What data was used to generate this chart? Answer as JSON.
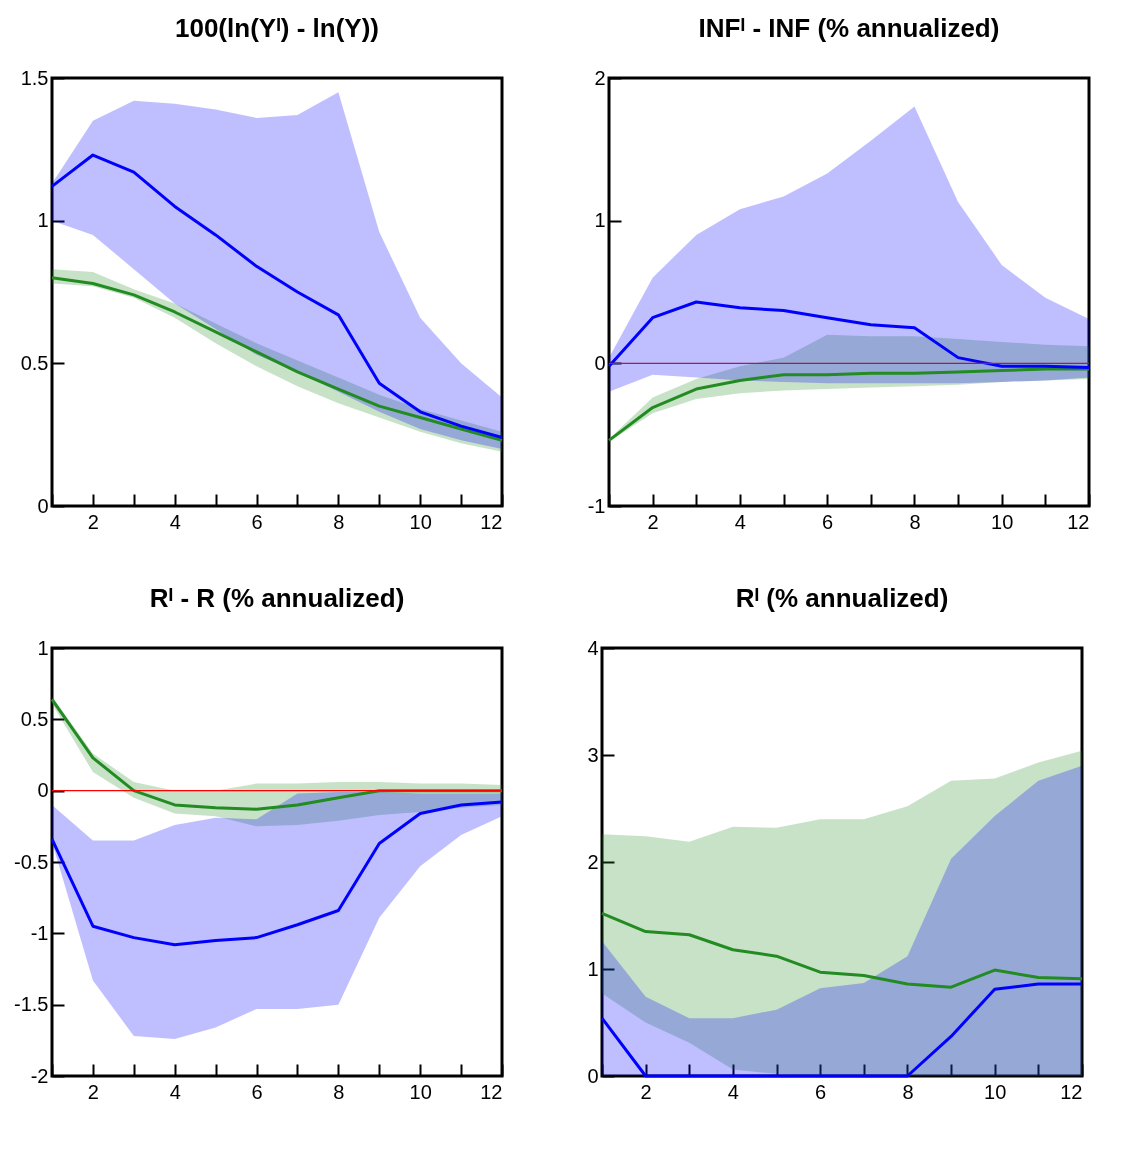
{
  "chart_data": [
    {
      "type": "line",
      "title": "100(ln(Yᴵ) - ln(Y))",
      "x": [
        1,
        2,
        3,
        4,
        5,
        6,
        7,
        8,
        9,
        10,
        11,
        12
      ],
      "xlim": [
        1,
        12
      ],
      "xticks": [
        {
          "value": 1,
          "label": null
        },
        2,
        {
          "value": 3,
          "label": null
        },
        4,
        {
          "value": 5,
          "label": null
        },
        6,
        {
          "value": 7,
          "label": null
        },
        8,
        {
          "value": 9,
          "label": null
        },
        10,
        {
          "value": 11,
          "label": null
        },
        12
      ],
      "ylim": [
        0,
        1.5
      ],
      "yticks": [
        0,
        0.5,
        1,
        1.5
      ],
      "grid": false,
      "series": [
        {
          "color": "#228b22",
          "values": [
            0.8,
            0.78,
            0.74,
            0.68,
            0.61,
            0.54,
            0.47,
            0.41,
            0.35,
            0.31,
            0.27,
            0.23
          ],
          "lower": [
            0.78,
            0.77,
            0.73,
            0.66,
            0.57,
            0.49,
            0.42,
            0.36,
            0.31,
            0.26,
            0.22,
            0.19
          ],
          "upper": [
            0.83,
            0.82,
            0.76,
            0.71,
            0.64,
            0.57,
            0.51,
            0.45,
            0.39,
            0.34,
            0.3,
            0.26
          ]
        },
        {
          "color": "#0000ff",
          "values": [
            1.12,
            1.23,
            1.17,
            1.05,
            0.95,
            0.84,
            0.75,
            0.67,
            0.43,
            0.33,
            0.28,
            0.24
          ],
          "lower": [
            1.0,
            0.95,
            0.83,
            0.71,
            0.62,
            0.53,
            0.47,
            0.4,
            0.33,
            0.27,
            0.23,
            0.2
          ],
          "upper": [
            1.13,
            1.35,
            1.42,
            1.41,
            1.39,
            1.36,
            1.37,
            1.45,
            0.96,
            0.66,
            0.5,
            0.38
          ]
        }
      ]
    },
    {
      "type": "line",
      "title": "INFᴵ - INF (% annualized)",
      "x": [
        1,
        2,
        3,
        4,
        5,
        6,
        7,
        8,
        9,
        10,
        11,
        12
      ],
      "xlim": [
        1,
        12
      ],
      "xticks": [
        {
          "value": 1,
          "label": null
        },
        2,
        {
          "value": 3,
          "label": null
        },
        4,
        {
          "value": 5,
          "label": null
        },
        6,
        {
          "value": 7,
          "label": null
        },
        8,
        {
          "value": 9,
          "label": null
        },
        10,
        {
          "value": 11,
          "label": null
        },
        12
      ],
      "ylim": [
        -1,
        2
      ],
      "yticks": [
        -1,
        0,
        1,
        2
      ],
      "grid": false,
      "ref_lines": [
        {
          "axis": "y",
          "value": 0,
          "color": "#a0204a"
        }
      ],
      "series": [
        {
          "color": "#228b22",
          "values": [
            -0.54,
            -0.31,
            -0.18,
            -0.12,
            -0.08,
            -0.08,
            -0.07,
            -0.07,
            -0.06,
            -0.05,
            -0.04,
            -0.04
          ],
          "lower": [
            -0.55,
            -0.35,
            -0.25,
            -0.21,
            -0.19,
            -0.18,
            -0.17,
            -0.16,
            -0.15,
            -0.13,
            -0.12,
            -0.11
          ],
          "upper": [
            -0.53,
            -0.24,
            -0.11,
            -0.02,
            0.04,
            0.2,
            0.19,
            0.19,
            0.17,
            0.15,
            0.13,
            0.12
          ]
        },
        {
          "color": "#0000ff",
          "values": [
            -0.02,
            0.32,
            0.43,
            0.39,
            0.37,
            0.32,
            0.27,
            0.25,
            0.04,
            -0.02,
            -0.02,
            -0.03
          ],
          "lower": [
            -0.2,
            -0.08,
            -0.1,
            -0.12,
            -0.13,
            -0.14,
            -0.14,
            -0.14,
            -0.14,
            -0.13,
            -0.12,
            -0.1
          ],
          "upper": [
            0.04,
            0.6,
            0.9,
            1.08,
            1.17,
            1.33,
            1.56,
            1.8,
            1.13,
            0.69,
            0.46,
            0.31
          ]
        }
      ]
    },
    {
      "type": "line",
      "title": "Rᴵ - R  (% annualized)",
      "x": [
        1,
        2,
        3,
        4,
        5,
        6,
        7,
        8,
        9,
        10,
        11,
        12
      ],
      "xlim": [
        1,
        12
      ],
      "xticks": [
        {
          "value": 1,
          "label": null
        },
        2,
        {
          "value": 3,
          "label": null
        },
        4,
        {
          "value": 5,
          "label": null
        },
        6,
        {
          "value": 7,
          "label": null
        },
        8,
        {
          "value": 9,
          "label": null
        },
        10,
        {
          "value": 11,
          "label": null
        },
        12
      ],
      "ylim": [
        -2,
        1
      ],
      "yticks": [
        -2,
        -1.5,
        -1,
        -0.5,
        0,
        0.5,
        1
      ],
      "grid": false,
      "ref_lines": [
        {
          "axis": "y",
          "value": 0,
          "color": "#ff0000"
        }
      ],
      "series": [
        {
          "color": "#228b22",
          "values": [
            0.64,
            0.23,
            0.0,
            -0.1,
            -0.12,
            -0.13,
            -0.1,
            -0.05,
            0.0,
            0.0,
            0.0,
            0.0
          ],
          "lower": [
            0.61,
            0.13,
            -0.05,
            -0.16,
            -0.18,
            -0.25,
            -0.24,
            -0.21,
            -0.17,
            -0.15,
            -0.12,
            -0.1
          ],
          "upper": [
            0.66,
            0.26,
            0.06,
            0.0,
            0.0,
            0.05,
            0.05,
            0.06,
            0.06,
            0.05,
            0.05,
            0.04
          ]
        },
        {
          "color": "#0000ff",
          "values": [
            -0.34,
            -0.95,
            -1.03,
            -1.08,
            -1.05,
            -1.03,
            -0.94,
            -0.84,
            -0.37,
            -0.16,
            -0.1,
            -0.08
          ],
          "lower": [
            -0.36,
            -1.33,
            -1.72,
            -1.74,
            -1.66,
            -1.53,
            -1.53,
            -1.5,
            -0.89,
            -0.53,
            -0.31,
            -0.18
          ],
          "upper": [
            -0.1,
            -0.35,
            -0.35,
            -0.24,
            -0.19,
            -0.2,
            -0.02,
            -0.01,
            -0.01,
            -0.02,
            -0.02,
            -0.02
          ]
        }
      ]
    },
    {
      "type": "line",
      "title": "Rᴵ  (% annualized)",
      "x": [
        1,
        2,
        3,
        4,
        5,
        6,
        7,
        8,
        9,
        10,
        11,
        12
      ],
      "xlim": [
        1,
        12
      ],
      "xticks": [
        {
          "value": 1,
          "label": null
        },
        2,
        {
          "value": 3,
          "label": null
        },
        4,
        {
          "value": 5,
          "label": null
        },
        6,
        {
          "value": 7,
          "label": null
        },
        8,
        {
          "value": 9,
          "label": null
        },
        10,
        {
          "value": 11,
          "label": null
        },
        12
      ],
      "ylim": [
        0,
        4
      ],
      "yticks": [
        0,
        1,
        2,
        3,
        4
      ],
      "grid": false,
      "series": [
        {
          "color": "#228b22",
          "values": [
            1.52,
            1.35,
            1.32,
            1.18,
            1.12,
            0.97,
            0.94,
            0.86,
            0.83,
            0.99,
            0.92,
            0.91
          ],
          "lower": [
            0.77,
            0.5,
            0.31,
            0.06,
            0.02,
            0,
            0,
            0,
            0,
            0,
            0,
            0
          ],
          "upper": [
            2.26,
            2.24,
            2.19,
            2.33,
            2.32,
            2.4,
            2.4,
            2.52,
            2.76,
            2.78,
            2.93,
            3.04
          ]
        },
        {
          "color": "#0000ff",
          "values": [
            0.54,
            0,
            0,
            0,
            0,
            0,
            0,
            0,
            0.37,
            0.81,
            0.86,
            0.86
          ],
          "lower": [
            0,
            0,
            0,
            0,
            0,
            0,
            0,
            0,
            0,
            0,
            0,
            0
          ],
          "upper": [
            1.26,
            0.74,
            0.54,
            0.54,
            0.62,
            0.82,
            0.87,
            1.12,
            2.03,
            2.43,
            2.76,
            2.9
          ]
        }
      ]
    }
  ]
}
